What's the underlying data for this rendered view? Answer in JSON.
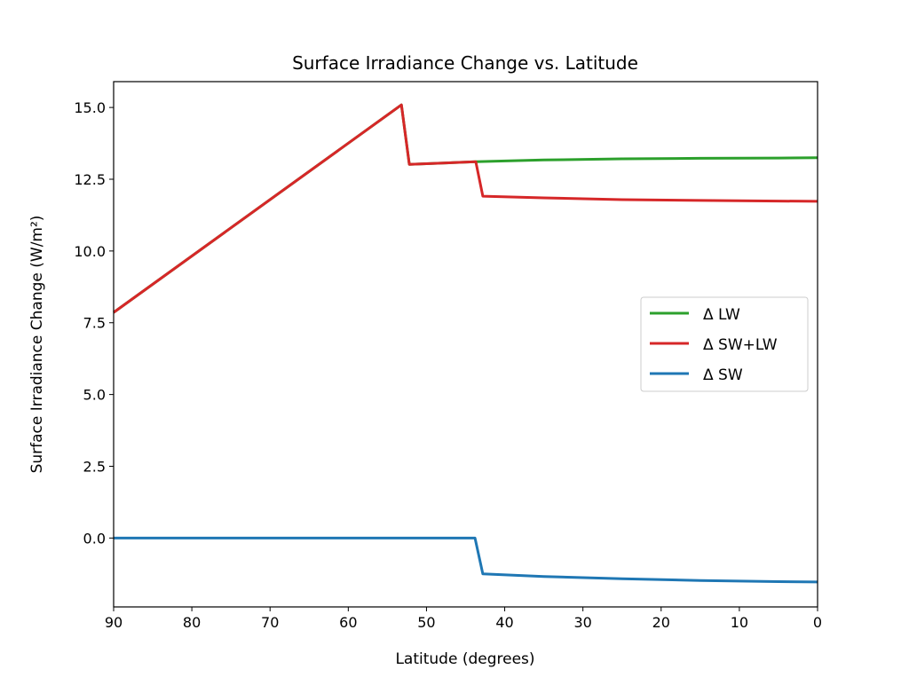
{
  "chart_data": {
    "type": "line",
    "title": "Surface Irradiance Change vs. Latitude",
    "xlabel": "Latitude (degrees)",
    "ylabel": "Surface Irradiance Change (W/m²)",
    "xlim": [
      90,
      0
    ],
    "ylim": [
      -2.4,
      15.9
    ],
    "xticks": [
      90,
      80,
      70,
      60,
      50,
      40,
      30,
      20,
      10,
      0
    ],
    "xtick_labels": [
      "90",
      "80",
      "70",
      "60",
      "50",
      "40",
      "30",
      "20",
      "10",
      "0"
    ],
    "yticks": [
      0,
      2.5,
      5,
      7.5,
      10,
      12.5,
      15
    ],
    "ytick_labels": [
      "0.0",
      "2.5",
      "5.0",
      "7.5",
      "10.0",
      "12.5",
      "15.0"
    ],
    "grid": false,
    "legend_position": "center-right",
    "series": [
      {
        "name": "Δ LW",
        "color": "#2ca02c",
        "x": [
          90,
          53.2,
          52.2,
          43.7,
          35,
          25,
          15,
          5,
          0
        ],
        "y": [
          7.86,
          15.09,
          13.02,
          13.11,
          13.17,
          13.21,
          13.23,
          13.24,
          13.25
        ]
      },
      {
        "name": "Δ SW+LW",
        "color": "#d62728",
        "x": [
          90,
          53.2,
          52.2,
          43.7,
          42.8,
          35,
          25,
          15,
          5,
          0
        ],
        "y": [
          7.86,
          15.09,
          13.02,
          13.11,
          11.91,
          11.85,
          11.79,
          11.76,
          11.74,
          11.73
        ]
      },
      {
        "name": "Δ SW",
        "color": "#1f77b4",
        "x": [
          90,
          43.8,
          42.8,
          35,
          25,
          15,
          5,
          0
        ],
        "y": [
          0,
          0,
          -1.25,
          -1.34,
          -1.42,
          -1.48,
          -1.52,
          -1.53
        ]
      }
    ]
  }
}
